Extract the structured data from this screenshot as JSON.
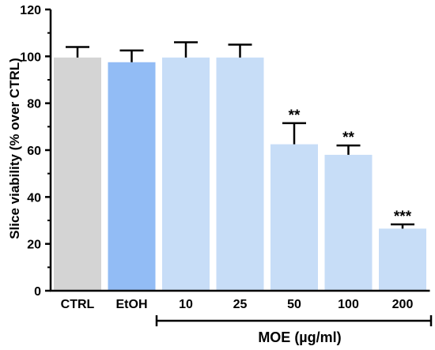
{
  "chart_data": {
    "type": "bar",
    "title": "",
    "xlabel": "",
    "ylabel": "Slice viability (% over CTRL)",
    "ylim": [
      0,
      120
    ],
    "yticks": [
      0,
      20,
      40,
      60,
      80,
      100,
      120
    ],
    "grid": false,
    "categories": [
      "CTRL",
      "EtOH",
      "10",
      "25",
      "50",
      "100",
      "200"
    ],
    "values": [
      99.5,
      97.5,
      99.5,
      99.5,
      62.5,
      58,
      26.5
    ],
    "error_upper": [
      4.5,
      5,
      6.5,
      5.5,
      9,
      4,
      1.8
    ],
    "significance": [
      "",
      "",
      "",
      "",
      "**",
      "**",
      "***"
    ],
    "colors": [
      "#d4d4d4",
      "#92bcf5",
      "#c7ddf7",
      "#c7ddf7",
      "#c7ddf7",
      "#c7ddf7",
      "#c7ddf7"
    ],
    "group_label": "MOE (µg/ml)",
    "group_range": [
      "10",
      "200"
    ]
  }
}
